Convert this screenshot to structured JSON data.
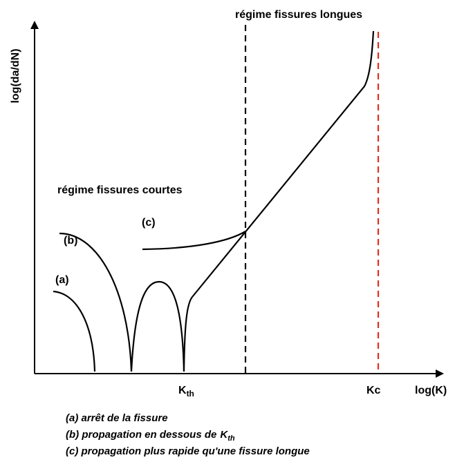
{
  "header": {
    "title": "régime fissures longues"
  },
  "y_axis": {
    "label": "log(da/dN)"
  },
  "x_axis": {
    "label": "log(K)"
  },
  "region_short": "régime fissures courtes",
  "curves": {
    "a": "(a)",
    "b": "(b)",
    "c": "(c)"
  },
  "kth": {
    "main": "K",
    "sub": "th"
  },
  "kc": "Kc",
  "legend": {
    "a": "(a) arrêt de la fissure",
    "b": {
      "text": "(b) propagation en dessous de",
      "symbol": "K",
      "sub": "th"
    },
    "c": "(c) propagation plus rapide qu'une fissure longue"
  }
}
